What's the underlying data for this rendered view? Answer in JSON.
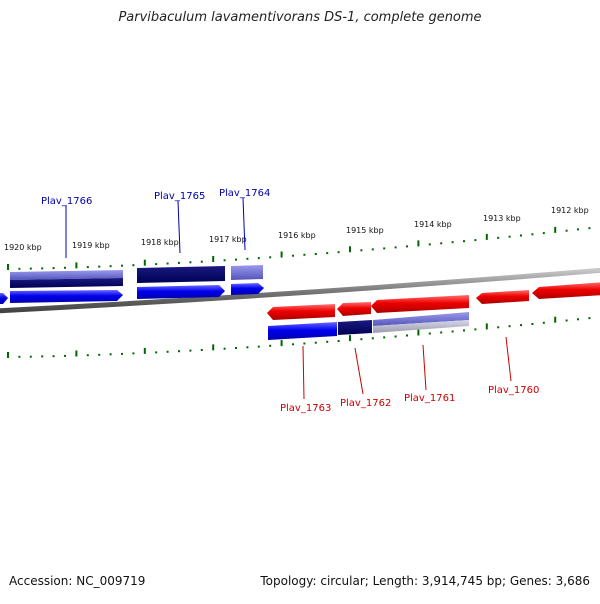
{
  "title": "Parvibaculum lavamentivorans DS-1, complete genome",
  "footer": {
    "accession": "Accession: NC_009719",
    "summary": "Topology: circular; Length: 3,914,745 bp; Genes: 3,686"
  },
  "colors": {
    "forward_gene": "#0000ee",
    "forward_gene_dark": "#000066",
    "forward_gene_light": "#6666cc",
    "reverse_gene": "#ee0000",
    "tick": "#006600",
    "backbone": "#888888",
    "label_forward": "#0000aa",
    "label_reverse": "#cc0000"
  },
  "scale_labels": [
    "1920 kbp",
    "1919 kbp",
    "1918 kbp",
    "1917 kbp",
    "1916 kbp",
    "1915 kbp",
    "1914 kbp",
    "1913 kbp",
    "1912 kbp"
  ],
  "gene_labels_forward": [
    "Plav_1766",
    "Plav_1765",
    "Plav_1764"
  ],
  "gene_labels_reverse": [
    "Plav_1763",
    "Plav_1762",
    "Plav_1761",
    "Plav_1760"
  ]
}
